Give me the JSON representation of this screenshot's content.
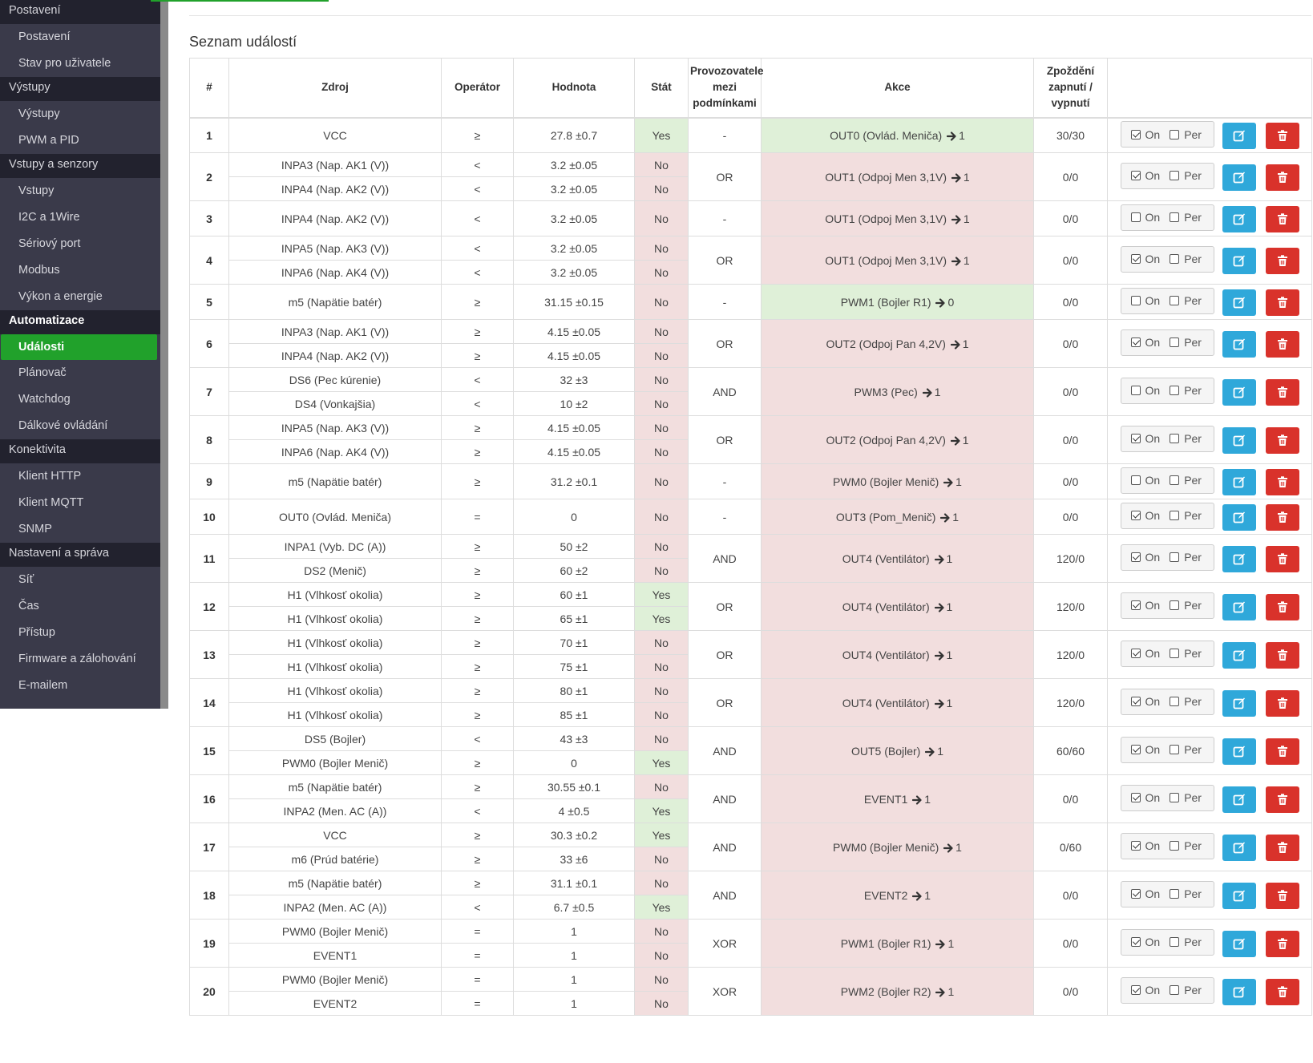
{
  "sidebar": [
    {
      "type": "group",
      "label": "Postavení"
    },
    {
      "type": "item",
      "label": "Postavení"
    },
    {
      "type": "item",
      "label": "Stav pro uživatele"
    },
    {
      "type": "group",
      "label": "Výstupy"
    },
    {
      "type": "item",
      "label": "Výstupy"
    },
    {
      "type": "item",
      "label": "PWM a PID"
    },
    {
      "type": "group",
      "label": "Vstupy a senzory"
    },
    {
      "type": "item",
      "label": "Vstupy"
    },
    {
      "type": "item",
      "label": "I2C a 1Wire"
    },
    {
      "type": "item",
      "label": "Sériový port"
    },
    {
      "type": "item",
      "label": "Modbus"
    },
    {
      "type": "item",
      "label": "Výkon a energie"
    },
    {
      "type": "group",
      "label": "Automatizace",
      "active": true
    },
    {
      "type": "item",
      "label": "Události",
      "active": true
    },
    {
      "type": "item",
      "label": "Plánovač"
    },
    {
      "type": "item",
      "label": "Watchdog"
    },
    {
      "type": "item",
      "label": "Dálkové ovládání"
    },
    {
      "type": "group",
      "label": "Konektivita"
    },
    {
      "type": "item",
      "label": "Klient HTTP"
    },
    {
      "type": "item",
      "label": "Klient MQTT"
    },
    {
      "type": "item",
      "label": "SNMP"
    },
    {
      "type": "group",
      "label": "Nastavení a správa"
    },
    {
      "type": "item",
      "label": "Síť"
    },
    {
      "type": "item",
      "label": "Čas"
    },
    {
      "type": "item",
      "label": "Přístup"
    },
    {
      "type": "item",
      "label": "Firmware a zálohování"
    },
    {
      "type": "item",
      "label": "E-mailem"
    }
  ],
  "section_title": "Seznam událostí",
  "columns": [
    "#",
    "Zdroj",
    "Operátor",
    "Hodnota",
    "Stát",
    "Provozovatele mezi podmínkami",
    "Akce",
    "Zpoždění zapnutí / vypnutí",
    ""
  ],
  "toggle_labels": {
    "on": "On",
    "per": "Per"
  },
  "colors": {
    "yes_bg": "#dff0d8",
    "no_bg": "#f2dede",
    "edit_btn": "#2fa8da",
    "delete_btn": "#d9322b",
    "active_nav": "#21a12b"
  },
  "icons": {
    "edit": "edit-icon",
    "delete": "trash-icon",
    "action_arrow": "arrow-right-icon"
  },
  "events": [
    {
      "num": "1",
      "conds": [
        {
          "src": "VCC",
          "op": "≥",
          "val": "27.8 ±0.7",
          "state": "Yes"
        }
      ],
      "logic": "-",
      "action": "OUT0 (Ovlád. Meniča)",
      "target": "1",
      "action_state": "green",
      "delay": "30/30",
      "on": true,
      "per": false
    },
    {
      "num": "2",
      "conds": [
        {
          "src": "INPA3 (Nap. AK1 (V))",
          "op": "<",
          "val": "3.2 ±0.05",
          "state": "No"
        },
        {
          "src": "INPA4 (Nap. AK2 (V))",
          "op": "<",
          "val": "3.2 ±0.05",
          "state": "No"
        }
      ],
      "logic": "OR",
      "action": "OUT1 (Odpoj Men 3,1V)",
      "target": "1",
      "action_state": "red",
      "delay": "0/0",
      "on": true,
      "per": false
    },
    {
      "num": "3",
      "conds": [
        {
          "src": "INPA4 (Nap. AK2 (V))",
          "op": "<",
          "val": "3.2 ±0.05",
          "state": "No"
        }
      ],
      "logic": "-",
      "action": "OUT1 (Odpoj Men 3,1V)",
      "target": "1",
      "action_state": "red",
      "delay": "0/0",
      "on": false,
      "per": false
    },
    {
      "num": "4",
      "conds": [
        {
          "src": "INPA5 (Nap. AK3 (V))",
          "op": "<",
          "val": "3.2 ±0.05",
          "state": "No"
        },
        {
          "src": "INPA6 (Nap. AK4 (V))",
          "op": "<",
          "val": "3.2 ±0.05",
          "state": "No"
        }
      ],
      "logic": "OR",
      "action": "OUT1 (Odpoj Men 3,1V)",
      "target": "1",
      "action_state": "red",
      "delay": "0/0",
      "on": true,
      "per": false
    },
    {
      "num": "5",
      "conds": [
        {
          "src": "m5 (Napätie batér)",
          "op": "≥",
          "val": "31.15 ±0.15",
          "state": "No"
        }
      ],
      "logic": "-",
      "action": "PWM1 (Bojler R1)",
      "target": "0",
      "action_state": "green",
      "delay": "0/0",
      "on": false,
      "per": false
    },
    {
      "num": "6",
      "conds": [
        {
          "src": "INPA3 (Nap. AK1 (V))",
          "op": "≥",
          "val": "4.15 ±0.05",
          "state": "No"
        },
        {
          "src": "INPA4 (Nap. AK2 (V))",
          "op": "≥",
          "val": "4.15 ±0.05",
          "state": "No"
        }
      ],
      "logic": "OR",
      "action": "OUT2 (Odpoj Pan 4,2V)",
      "target": "1",
      "action_state": "red",
      "delay": "0/0",
      "on": true,
      "per": false
    },
    {
      "num": "7",
      "conds": [
        {
          "src": "DS6 (Pec kúrenie)",
          "op": "<",
          "val": "32 ±3",
          "state": "No"
        },
        {
          "src": "DS4 (Vonkajšia)",
          "op": "<",
          "val": "10 ±2",
          "state": "No"
        }
      ],
      "logic": "AND",
      "action": "PWM3 (Pec)",
      "target": "1",
      "action_state": "red",
      "delay": "0/0",
      "on": false,
      "per": false
    },
    {
      "num": "8",
      "conds": [
        {
          "src": "INPA5 (Nap. AK3 (V))",
          "op": "≥",
          "val": "4.15 ±0.05",
          "state": "No"
        },
        {
          "src": "INPA6 (Nap. AK4 (V))",
          "op": "≥",
          "val": "4.15 ±0.05",
          "state": "No"
        }
      ],
      "logic": "OR",
      "action": "OUT2 (Odpoj Pan 4,2V)",
      "target": "1",
      "action_state": "red",
      "delay": "0/0",
      "on": true,
      "per": false
    },
    {
      "num": "9",
      "conds": [
        {
          "src": "m5 (Napätie batér)",
          "op": "≥",
          "val": "31.2 ±0.1",
          "state": "No"
        }
      ],
      "logic": "-",
      "action": "PWM0 (Bojler Menič)",
      "target": "1",
      "action_state": "red",
      "delay": "0/0",
      "on": false,
      "per": false
    },
    {
      "num": "10",
      "conds": [
        {
          "src": "OUT0 (Ovlád. Meniča)",
          "op": "=",
          "val": "0",
          "state": "No"
        }
      ],
      "logic": "-",
      "action": "OUT3 (Pom_Menič)",
      "target": "1",
      "action_state": "red",
      "delay": "0/0",
      "on": true,
      "per": false
    },
    {
      "num": "11",
      "conds": [
        {
          "src": "INPA1 (Vyb. DC (A))",
          "op": "≥",
          "val": "50 ±2",
          "state": "No"
        },
        {
          "src": "DS2 (Menič)",
          "op": "≥",
          "val": "60 ±2",
          "state": "No"
        }
      ],
      "logic": "AND",
      "action": "OUT4 (Ventilátor)",
      "target": "1",
      "action_state": "red",
      "delay": "120/0",
      "on": true,
      "per": false
    },
    {
      "num": "12",
      "conds": [
        {
          "src": "H1 (Vlhkosť okolia)",
          "op": "≥",
          "val": "60 ±1",
          "state": "Yes"
        },
        {
          "src": "H1 (Vlhkosť okolia)",
          "op": "≥",
          "val": "65 ±1",
          "state": "Yes"
        }
      ],
      "logic": "OR",
      "action": "OUT4 (Ventilátor)",
      "target": "1",
      "action_state": "red",
      "delay": "120/0",
      "on": true,
      "per": false
    },
    {
      "num": "13",
      "conds": [
        {
          "src": "H1 (Vlhkosť okolia)",
          "op": "≥",
          "val": "70 ±1",
          "state": "No"
        },
        {
          "src": "H1 (Vlhkosť okolia)",
          "op": "≥",
          "val": "75 ±1",
          "state": "No"
        }
      ],
      "logic": "OR",
      "action": "OUT4 (Ventilátor)",
      "target": "1",
      "action_state": "red",
      "delay": "120/0",
      "on": true,
      "per": false
    },
    {
      "num": "14",
      "conds": [
        {
          "src": "H1 (Vlhkosť okolia)",
          "op": "≥",
          "val": "80 ±1",
          "state": "No"
        },
        {
          "src": "H1 (Vlhkosť okolia)",
          "op": "≥",
          "val": "85 ±1",
          "state": "No"
        }
      ],
      "logic": "OR",
      "action": "OUT4 (Ventilátor)",
      "target": "1",
      "action_state": "red",
      "delay": "120/0",
      "on": true,
      "per": false
    },
    {
      "num": "15",
      "conds": [
        {
          "src": "DS5 (Bojler)",
          "op": "<",
          "val": "43 ±3",
          "state": "No"
        },
        {
          "src": "PWM0 (Bojler Menič)",
          "op": "≥",
          "val": "0",
          "state": "Yes"
        }
      ],
      "logic": "AND",
      "action": "OUT5 (Bojler)",
      "target": "1",
      "action_state": "red",
      "delay": "60/60",
      "on": true,
      "per": false
    },
    {
      "num": "16",
      "conds": [
        {
          "src": "m5 (Napätie batér)",
          "op": "≥",
          "val": "30.55 ±0.1",
          "state": "No"
        },
        {
          "src": "INPA2 (Men. AC (A))",
          "op": "<",
          "val": "4 ±0.5",
          "state": "Yes"
        }
      ],
      "logic": "AND",
      "action": "EVENT1",
      "target": "1",
      "action_state": "red",
      "delay": "0/0",
      "on": true,
      "per": false
    },
    {
      "num": "17",
      "conds": [
        {
          "src": "VCC",
          "op": "≥",
          "val": "30.3 ±0.2",
          "state": "Yes"
        },
        {
          "src": "m6 (Prúd batérie)",
          "op": "≥",
          "val": "33 ±6",
          "state": "No"
        }
      ],
      "logic": "AND",
      "action": "PWM0 (Bojler Menič)",
      "target": "1",
      "action_state": "red",
      "delay": "0/60",
      "on": true,
      "per": false
    },
    {
      "num": "18",
      "conds": [
        {
          "src": "m5 (Napätie batér)",
          "op": "≥",
          "val": "31.1 ±0.1",
          "state": "No"
        },
        {
          "src": "INPA2 (Men. AC (A))",
          "op": "<",
          "val": "6.7 ±0.5",
          "state": "Yes"
        }
      ],
      "logic": "AND",
      "action": "EVENT2",
      "target": "1",
      "action_state": "red",
      "delay": "0/0",
      "on": true,
      "per": false
    },
    {
      "num": "19",
      "conds": [
        {
          "src": "PWM0 (Bojler Menič)",
          "op": "=",
          "val": "1",
          "state": "No"
        },
        {
          "src": "EVENT1",
          "op": "=",
          "val": "1",
          "state": "No"
        }
      ],
      "logic": "XOR",
      "action": "PWM1 (Bojler R1)",
      "target": "1",
      "action_state": "red",
      "delay": "0/0",
      "on": true,
      "per": false
    },
    {
      "num": "20",
      "conds": [
        {
          "src": "PWM0 (Bojler Menič)",
          "op": "=",
          "val": "1",
          "state": "No"
        },
        {
          "src": "EVENT2",
          "op": "=",
          "val": "1",
          "state": "No"
        }
      ],
      "logic": "XOR",
      "action": "PWM2 (Bojler R2)",
      "target": "1",
      "action_state": "red",
      "delay": "0/0",
      "on": true,
      "per": false
    }
  ]
}
